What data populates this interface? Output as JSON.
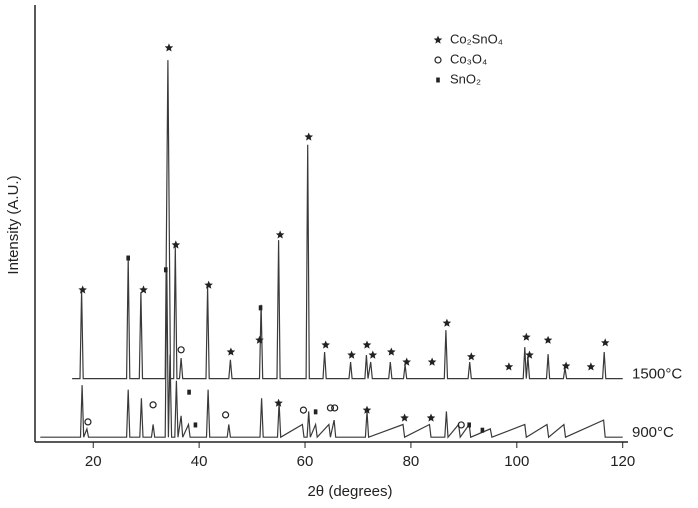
{
  "chart_data": {
    "type": "line",
    "xlabel": "2θ (degrees)",
    "ylabel": "Intensity (A.U.)",
    "xlim": [
      9,
      121
    ],
    "xticks": [
      20,
      40,
      60,
      80,
      100,
      120
    ],
    "ylim": [
      0,
      100
    ],
    "series": [
      {
        "name": "1500°C",
        "color": "#3a3a3a",
        "x": [
          16,
          17.5,
          17.8,
          18.1,
          26.3,
          26.6,
          26.9,
          28.7,
          29,
          29.3,
          33.6,
          34.1,
          34.6,
          35.2,
          35.5,
          35.8,
          36.3,
          36.6,
          36.9,
          41.3,
          41.6,
          41.9,
          45.6,
          45.9,
          46.2,
          51.4,
          51.7,
          52,
          54.7,
          55,
          55.3,
          60.2,
          60.5,
          60.8,
          63.4,
          63.7,
          64,
          68.3,
          68.6,
          68.9,
          71.3,
          71.6,
          71.9,
          72.4,
          72.7,
          75.8,
          76.1,
          76.4,
          78.6,
          78.9,
          79.2,
          86.3,
          86.6,
          86.9,
          90.8,
          91.1,
          91.4,
          101.2,
          101.5,
          101.8,
          102.1,
          102.4,
          105.6,
          105.9,
          106.2,
          108.8,
          109.1,
          109.4,
          116.2,
          116.5,
          116.8,
          120
        ],
        "values": [
          14.5,
          14.5,
          34.8,
          14.5,
          14.5,
          42,
          14.5,
          14.5,
          34.3,
          14.5,
          14.5,
          87.4,
          14.5,
          14.5,
          44.6,
          14.5,
          14.5,
          19.2,
          14.5,
          14.5,
          35.5,
          14.5,
          14.5,
          18.8,
          14.5,
          14.5,
          31.4,
          14.5,
          14.5,
          46.2,
          14.5,
          14.5,
          68,
          14.5,
          14.5,
          20.6,
          14.5,
          14.5,
          18.3,
          14.5,
          14.5,
          19.9,
          14.5,
          18.3,
          14.5,
          14.5,
          18.3,
          14.5,
          14.5,
          17.6,
          14.5,
          14.5,
          25.6,
          14.5,
          14.5,
          18.3,
          14.5,
          14.5,
          21.7,
          14.5,
          19.5,
          14.5,
          14.5,
          20.1,
          14.5,
          14.5,
          16.9,
          14.5,
          14.5,
          20.6,
          14.5,
          14.5
        ]
      },
      {
        "name": "900°C",
        "color": "#3a3a3a",
        "x": [
          10,
          17.6,
          17.9,
          18.2,
          18.8,
          19.1,
          26.3,
          26.6,
          26.9,
          28.8,
          29.1,
          29.4,
          31,
          31.3,
          31.6,
          33.6,
          33.9,
          34.2,
          34.5,
          34.8,
          35.4,
          35.7,
          36,
          36.6,
          36.9,
          38,
          38.3,
          41.4,
          41.7,
          42,
          45.3,
          45.6,
          45.9,
          51.5,
          51.8,
          52.1,
          54.8,
          55.1,
          55.4,
          59.5,
          59.8,
          60.4,
          60.7,
          61,
          62,
          62.3,
          64.5,
          64.8,
          65.5,
          65.8,
          71.4,
          71.7,
          72,
          78.5,
          78.8,
          83.5,
          83.8,
          86.4,
          86.7,
          87,
          89,
          89.3,
          91,
          91.3,
          95,
          95.3,
          101.5,
          101.8,
          105.7,
          106,
          108.9,
          109.2,
          116.4,
          116.7,
          120
        ],
        "values": [
          1.1,
          1.1,
          13,
          1.1,
          3,
          1.1,
          1.1,
          12,
          1.1,
          1.1,
          10,
          1.1,
          1.1,
          4,
          1.1,
          1.1,
          40,
          1.1,
          20,
          1.1,
          1.1,
          14,
          1.1,
          6,
          1.1,
          4,
          1.1,
          1.1,
          12,
          1.1,
          1.1,
          4,
          1.1,
          1.1,
          10,
          1.1,
          1.1,
          9,
          1.1,
          4,
          1.1,
          1.1,
          7,
          1.1,
          4,
          1.1,
          4,
          1.1,
          5,
          1.1,
          1.1,
          7,
          1.1,
          4,
          1.1,
          4,
          1.1,
          1.1,
          7,
          1.1,
          4,
          1.1,
          4,
          1.1,
          3,
          1.1,
          4,
          1.1,
          4,
          1.1,
          4,
          1.1,
          5,
          1.1,
          1.1
        ]
      }
    ],
    "phases": [
      {
        "name": "Co₂SnO₄",
        "marker": "star",
        "color": "#222",
        "x": [
          18,
          29.5,
          34.3,
          35.6,
          41.8,
          46,
          51.4,
          55.3,
          60.7,
          63.9,
          68.8,
          71.7,
          72.8,
          76.3,
          79.2,
          84,
          86.8,
          91.4,
          98.5,
          101.8,
          102.4,
          105.9,
          109.3,
          114,
          116.7,
          55,
          71.7,
          78.8,
          83.8
        ],
        "values": [
          34.8,
          34.8,
          90.2,
          45.1,
          35.9,
          20.6,
          23.3,
          47.4,
          69.8,
          22.2,
          19.9,
          22.2,
          19.9,
          20.6,
          18.3,
          18.3,
          27.2,
          19.5,
          17.2,
          24,
          19.9,
          23.3,
          17.4,
          17.2,
          22.7,
          8.9,
          7.3,
          5.5,
          5.5
        ]
      },
      {
        "name": "Co₃O₄",
        "marker": "circle",
        "color": "#222",
        "x": [
          19,
          31.3,
          36.6,
          45,
          59.7,
          64.8,
          65.6,
          89.5
        ],
        "values": [
          4.6,
          8.5,
          21.1,
          6.2,
          7.3,
          7.8,
          7.8,
          3.9
        ]
      },
      {
        "name": "SnO₂",
        "marker": "square",
        "color": "#222",
        "x": [
          26.6,
          33.7,
          38.1,
          39.3,
          51.6,
          62,
          91,
          93.5
        ],
        "values": [
          42.1,
          39.4,
          11.4,
          3.9,
          30.7,
          6.9,
          3.9,
          2.7
        ]
      }
    ]
  }
}
